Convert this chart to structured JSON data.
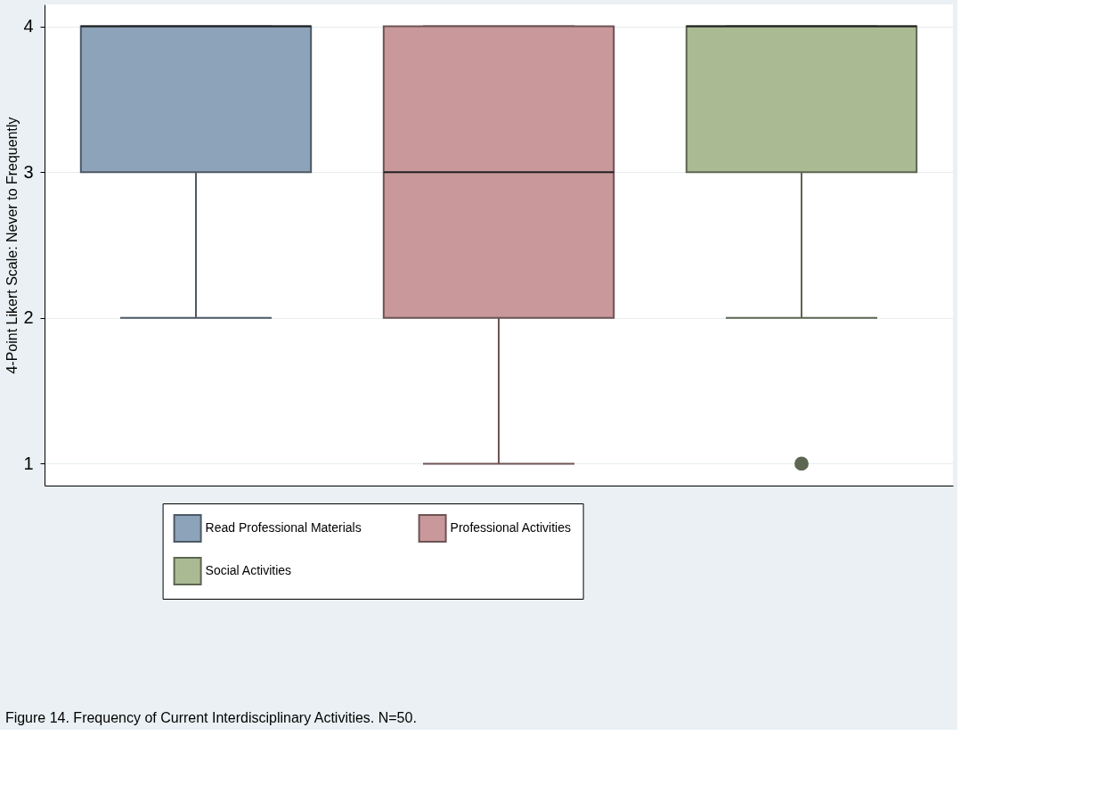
{
  "chart_data": {
    "type": "box",
    "ylabel": "4-Point Likert Scale: Never to Frequently",
    "annotations": [
      "Figure 14. Frequency of Current Interdisciplinary Activities. N=50."
    ],
    "categories": [
      null,
      null,
      null
    ],
    "series": [
      {
        "name": "Read Professional Materials",
        "color": "#8ca3ba",
        "boxes": [
          {
            "low": 2,
            "q1": 3,
            "median": 4,
            "q3": 4,
            "high": 4
          },
          null,
          null
        ]
      },
      {
        "name": "Professional Activities",
        "color": "#c8989b",
        "boxes": [
          null,
          {
            "low": 1,
            "q1": 2,
            "median": 3,
            "q3": 4,
            "high": 4
          },
          null
        ]
      },
      {
        "name": "Social Activities",
        "color": "#aabb94",
        "boxes": [
          null,
          null,
          {
            "low": 2,
            "q1": 3,
            "median": 4,
            "q3": 4,
            "high": 4,
            "outliers": [
              1
            ]
          }
        ]
      }
    ],
    "ylim": [
      0.85,
      4.15
    ],
    "yticks": [
      1,
      2,
      3,
      4
    ],
    "grid": "y",
    "legend": "bottom"
  }
}
